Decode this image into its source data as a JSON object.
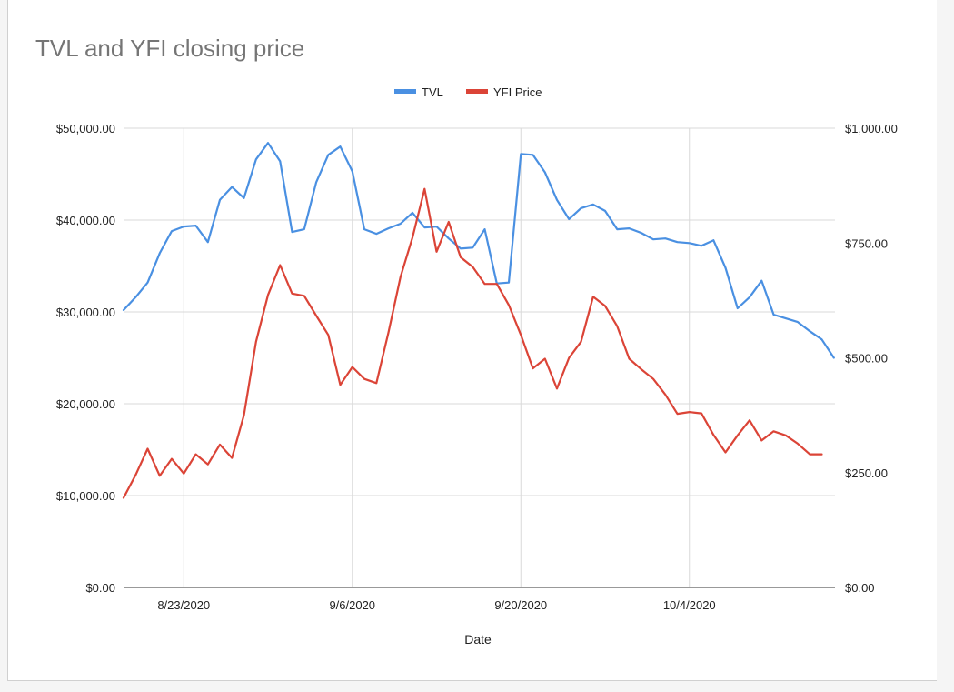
{
  "chart_data": {
    "type": "line",
    "title": "TVL and YFI closing price",
    "xlabel": "Date",
    "ylabel_left": "",
    "ylabel_right": "",
    "legend_position": "top",
    "grid": true,
    "x_start": "2020-08-18",
    "x_ticks": [
      "8/23/2020",
      "9/6/2020",
      "9/20/2020",
      "10/4/2020"
    ],
    "y_left_ticks": [
      "$0.00",
      "$10,000.00",
      "$20,000.00",
      "$30,000.00",
      "$40,000.00",
      "$50,000.00"
    ],
    "y_right_ticks": [
      "$0.00",
      "$250.00",
      "$500.00",
      "$750.00",
      "$1,000.00"
    ],
    "ylim_left": [
      0,
      50000
    ],
    "ylim_right": [
      0,
      1000
    ],
    "series": [
      {
        "name": "TVL",
        "axis": "left",
        "color": "#4a90e2",
        "values": [
          30200,
          31600,
          33200,
          36400,
          38800,
          39300,
          39400,
          37600,
          42200,
          43600,
          42400,
          46600,
          48400,
          46400,
          38700,
          39000,
          44100,
          47100,
          48000,
          45300,
          39000,
          38500,
          39100,
          39600,
          40800,
          39200,
          39300,
          38000,
          36900,
          37000,
          39000,
          33100,
          33200,
          47200,
          47100,
          45200,
          42200,
          40100,
          41300,
          41700,
          41000,
          39000,
          39100,
          38600,
          37900,
          38000,
          37600,
          37500,
          37200,
          37800,
          34800,
          30400,
          31600,
          33400,
          29700,
          29300,
          28900,
          27900,
          27000,
          25000
        ]
      },
      {
        "name": "YFI Price",
        "axis": "right",
        "color": "#db4437",
        "values": [
          195,
          245,
          302,
          243,
          280,
          248,
          290,
          268,
          311,
          282,
          375,
          535,
          637,
          702,
          640,
          635,
          592,
          550,
          441,
          480,
          454,
          445,
          555,
          676,
          762,
          868,
          731,
          796,
          719,
          698,
          661,
          661,
          615,
          550,
          477,
          498,
          433,
          500,
          535,
          633,
          613,
          569,
          498,
          475,
          454,
          420,
          378,
          382,
          379,
          332,
          294,
          331,
          364,
          320,
          340,
          331,
          313,
          290,
          290
        ]
      }
    ]
  }
}
